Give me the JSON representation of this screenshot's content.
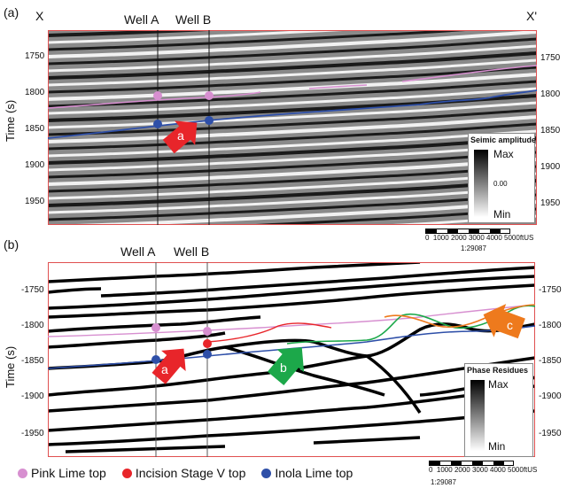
{
  "panel_a": {
    "label": "(a)",
    "left_label": "X",
    "right_label": "X'",
    "well_a": "Well A",
    "well_b": "Well B",
    "y_title": "Time (s)",
    "y_ticks": [
      "1750",
      "1800",
      "1850",
      "1900",
      "1950"
    ],
    "arrow_label": "a",
    "colorbar": {
      "title": "Seimic amplitude",
      "max": "Max",
      "mid": "0.00",
      "min": "Min"
    }
  },
  "panel_b": {
    "label": "(b)",
    "well_a": "Well A",
    "well_b": "Well B",
    "y_title": "Time (s)",
    "y_ticks": [
      "-1750",
      "-1800",
      "-1850",
      "-1900",
      "-1950"
    ],
    "arrows": [
      "a",
      "b",
      "c"
    ],
    "colorbar": {
      "title": "Phase Residues",
      "max": "Max",
      "min": "Min"
    }
  },
  "scalebar": {
    "ticks": [
      "0",
      "1000",
      "2000",
      "3000",
      "4000",
      "5000ftUS"
    ],
    "ratio": "1:29087"
  },
  "legend": [
    {
      "label": "Pink Lime top",
      "color": "#d78fd0"
    },
    {
      "label": "Incision Stage V top",
      "color": "#e8252a"
    },
    {
      "label": "Inola Lime top",
      "color": "#2e4fa8"
    }
  ],
  "colors": {
    "pink": "#d78fd0",
    "red": "#e8252a",
    "blue": "#2e4fa8",
    "green": "#1ca84a",
    "orange": "#ee7a1d",
    "frame": "#e05050"
  }
}
